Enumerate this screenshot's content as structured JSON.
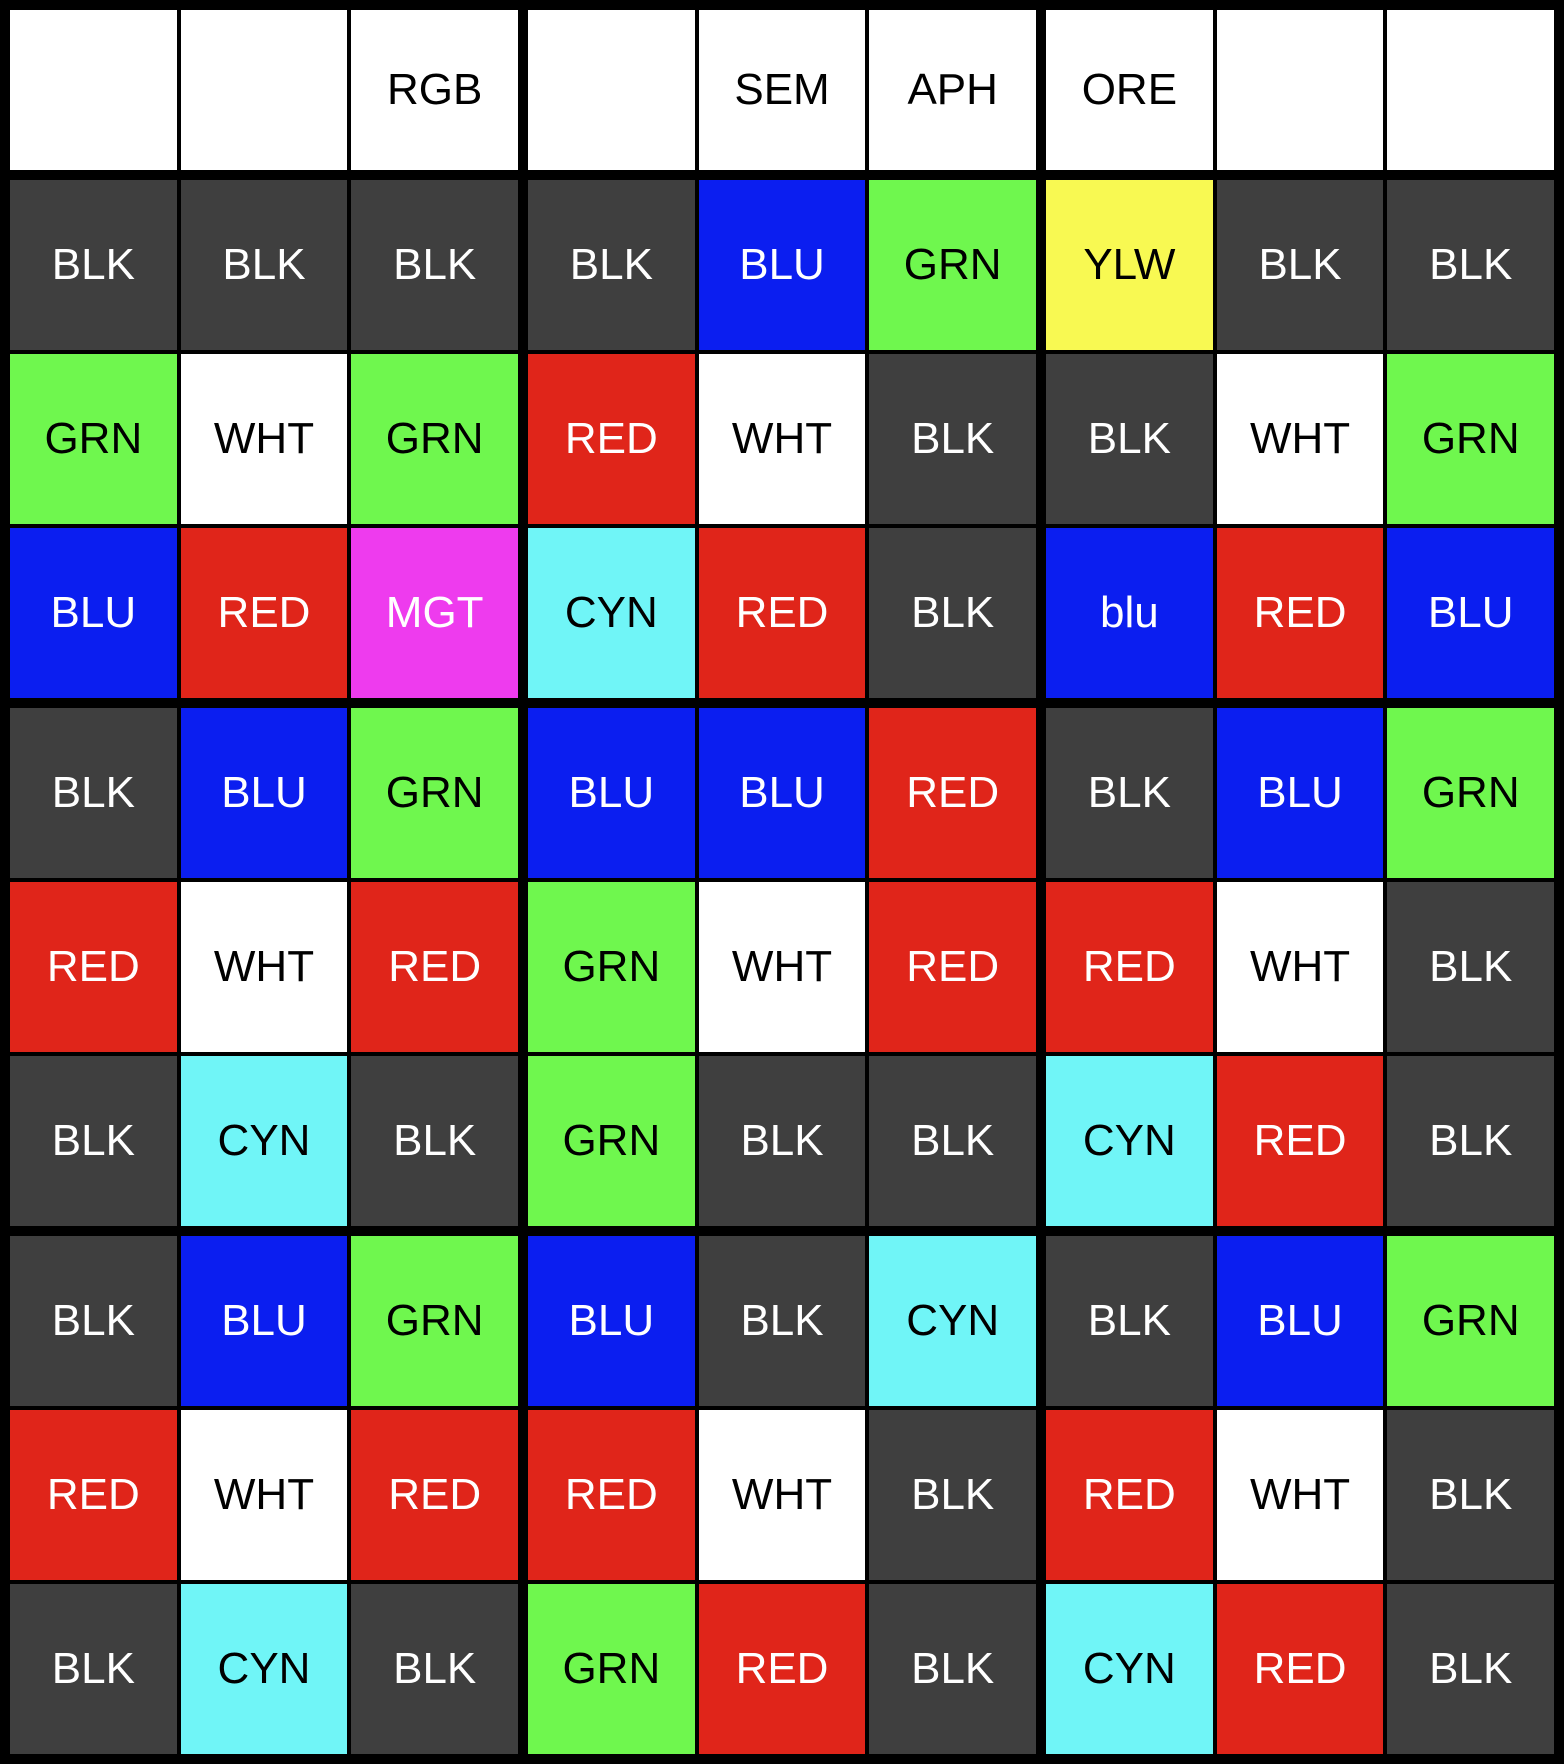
{
  "board": {
    "header": {
      "labels": [
        "",
        "",
        "RGB",
        "",
        "SEM",
        "APH",
        "ORE",
        "",
        ""
      ]
    },
    "rows": [
      [
        {
          "label": "BLK",
          "color": "BLK"
        },
        {
          "label": "BLK",
          "color": "BLK"
        },
        {
          "label": "BLK",
          "color": "BLK"
        },
        {
          "label": "BLK",
          "color": "BLK"
        },
        {
          "label": "BLU",
          "color": "BLU"
        },
        {
          "label": "GRN",
          "color": "GRN"
        },
        {
          "label": "YLW",
          "color": "YLW"
        },
        {
          "label": "BLK",
          "color": "BLK"
        },
        {
          "label": "BLK",
          "color": "BLK"
        }
      ],
      [
        {
          "label": "GRN",
          "color": "GRN"
        },
        {
          "label": "WHT",
          "color": "WHT"
        },
        {
          "label": "GRN",
          "color": "GRN"
        },
        {
          "label": "RED",
          "color": "RED"
        },
        {
          "label": "WHT",
          "color": "WHT"
        },
        {
          "label": "BLK",
          "color": "BLK"
        },
        {
          "label": "BLK",
          "color": "BLK"
        },
        {
          "label": "WHT",
          "color": "WHT"
        },
        {
          "label": "GRN",
          "color": "GRN"
        }
      ],
      [
        {
          "label": "BLU",
          "color": "BLU"
        },
        {
          "label": "RED",
          "color": "RED"
        },
        {
          "label": "MGT",
          "color": "MGT"
        },
        {
          "label": "CYN",
          "color": "CYN"
        },
        {
          "label": "RED",
          "color": "RED"
        },
        {
          "label": "BLK",
          "color": "BLK"
        },
        {
          "label": "blu",
          "color": "BLU"
        },
        {
          "label": "RED",
          "color": "RED"
        },
        {
          "label": "BLU",
          "color": "BLU"
        }
      ],
      [
        {
          "label": "BLK",
          "color": "BLK"
        },
        {
          "label": "BLU",
          "color": "BLU"
        },
        {
          "label": "GRN",
          "color": "GRN"
        },
        {
          "label": "BLU",
          "color": "BLU"
        },
        {
          "label": "BLU",
          "color": "BLU"
        },
        {
          "label": "RED",
          "color": "RED"
        },
        {
          "label": "BLK",
          "color": "BLK"
        },
        {
          "label": "BLU",
          "color": "BLU"
        },
        {
          "label": "GRN",
          "color": "GRN"
        }
      ],
      [
        {
          "label": "RED",
          "color": "RED"
        },
        {
          "label": "WHT",
          "color": "WHT"
        },
        {
          "label": "RED",
          "color": "RED"
        },
        {
          "label": "GRN",
          "color": "GRN"
        },
        {
          "label": "WHT",
          "color": "WHT"
        },
        {
          "label": "RED",
          "color": "RED"
        },
        {
          "label": "RED",
          "color": "RED"
        },
        {
          "label": "WHT",
          "color": "WHT"
        },
        {
          "label": "BLK",
          "color": "BLK"
        }
      ],
      [
        {
          "label": "BLK",
          "color": "BLK"
        },
        {
          "label": "CYN",
          "color": "CYN"
        },
        {
          "label": "BLK",
          "color": "BLK"
        },
        {
          "label": "GRN",
          "color": "GRN"
        },
        {
          "label": "BLK",
          "color": "BLK"
        },
        {
          "label": "BLK",
          "color": "BLK"
        },
        {
          "label": "CYN",
          "color": "CYN"
        },
        {
          "label": "RED",
          "color": "RED"
        },
        {
          "label": "BLK",
          "color": "BLK"
        }
      ],
      [
        {
          "label": "BLK",
          "color": "BLK"
        },
        {
          "label": "BLU",
          "color": "BLU"
        },
        {
          "label": "GRN",
          "color": "GRN"
        },
        {
          "label": "BLU",
          "color": "BLU"
        },
        {
          "label": "BLK",
          "color": "BLK"
        },
        {
          "label": "CYN",
          "color": "CYN"
        },
        {
          "label": "BLK",
          "color": "BLK"
        },
        {
          "label": "BLU",
          "color": "BLU"
        },
        {
          "label": "GRN",
          "color": "GRN"
        }
      ],
      [
        {
          "label": "RED",
          "color": "RED"
        },
        {
          "label": "WHT",
          "color": "WHT"
        },
        {
          "label": "RED",
          "color": "RED"
        },
        {
          "label": "RED",
          "color": "RED"
        },
        {
          "label": "WHT",
          "color": "WHT"
        },
        {
          "label": "BLK",
          "color": "BLK"
        },
        {
          "label": "RED",
          "color": "RED"
        },
        {
          "label": "WHT",
          "color": "WHT"
        },
        {
          "label": "BLK",
          "color": "BLK"
        }
      ],
      [
        {
          "label": "BLK",
          "color": "BLK"
        },
        {
          "label": "CYN",
          "color": "CYN"
        },
        {
          "label": "BLK",
          "color": "BLK"
        },
        {
          "label": "GRN",
          "color": "GRN"
        },
        {
          "label": "RED",
          "color": "RED"
        },
        {
          "label": "BLK",
          "color": "BLK"
        },
        {
          "label": "CYN",
          "color": "CYN"
        },
        {
          "label": "RED",
          "color": "RED"
        },
        {
          "label": "BLK",
          "color": "BLK"
        }
      ]
    ]
  },
  "palette": {
    "BLK": "#3f3f3f",
    "BLU": "#0b1ef0",
    "GRN": "#6ff74e",
    "YLW": "#f8f952",
    "RED": "#e0251a",
    "WHT": "#ffffff",
    "MGT": "#ee3bee",
    "CYN": "#70f5f7",
    "header_bg": "#ffffff",
    "grid_line": "#000000",
    "light_text": "#ffffff",
    "dark_text": "#000000"
  },
  "text_rules": {
    "dark_text_on": [
      "GRN",
      "YLW",
      "WHT",
      "CYN"
    ]
  }
}
